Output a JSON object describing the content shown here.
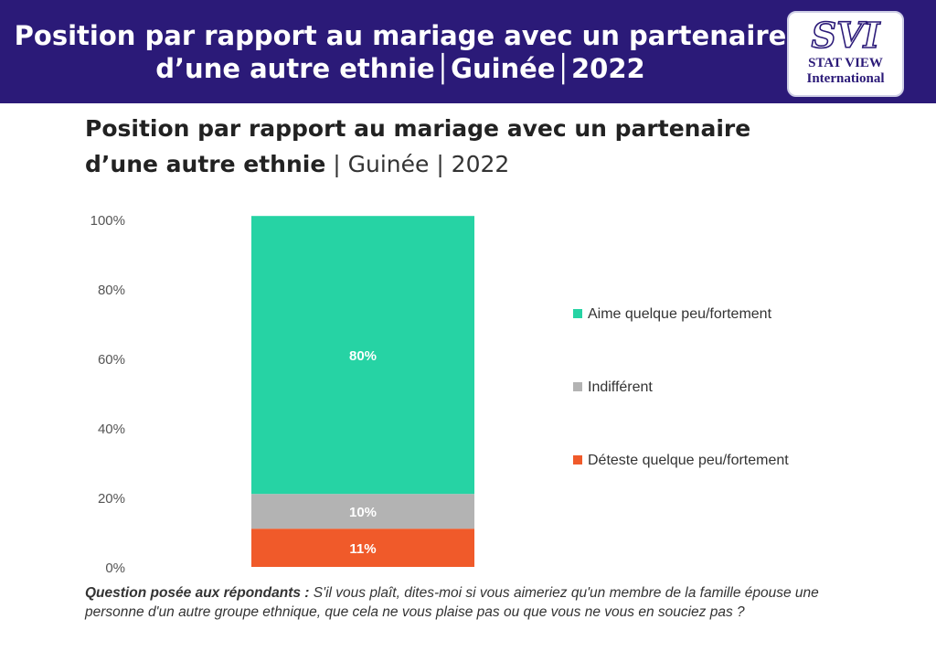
{
  "header": {
    "line1": "Position par rapport au mariage avec un partenaire",
    "line2": "d’une autre ethnie│Guinée│2022",
    "logo_text": "SVI",
    "logo_sub1": "STAT VIEW",
    "logo_sub2": "International"
  },
  "title": {
    "line1": "Position par rapport au mariage avec un partenaire",
    "line2_bold": "d’une autre ethnie",
    "line2_rest": " | Guinée | 2022"
  },
  "chart_data": {
    "type": "bar",
    "stacked": true,
    "categories": [
      ""
    ],
    "ylim": [
      0,
      100
    ],
    "yticks": [
      "0%",
      "20%",
      "40%",
      "60%",
      "80%",
      "100%"
    ],
    "series": [
      {
        "name": "Déteste quelque peu/fortement",
        "values": [
          11
        ],
        "label": "11%",
        "color": "#f05a2a"
      },
      {
        "name": "Indifférent",
        "values": [
          10
        ],
        "label": "10%",
        "color": "#b3b3b3"
      },
      {
        "name": "Aime quelque peu/fortement",
        "values": [
          80
        ],
        "label": "80%",
        "color": "#26d3a4"
      }
    ],
    "legend_position": "right",
    "grid": false
  },
  "note": {
    "question": "Question posée aux répondants :",
    "text": " S'il vous plaît, dites-moi si vous aimeriez qu'un membre de la famille épouse une personne d'un autre groupe ethnique, que cela ne vous plaise pas ou que vous ne vous en souciez pas ?"
  }
}
